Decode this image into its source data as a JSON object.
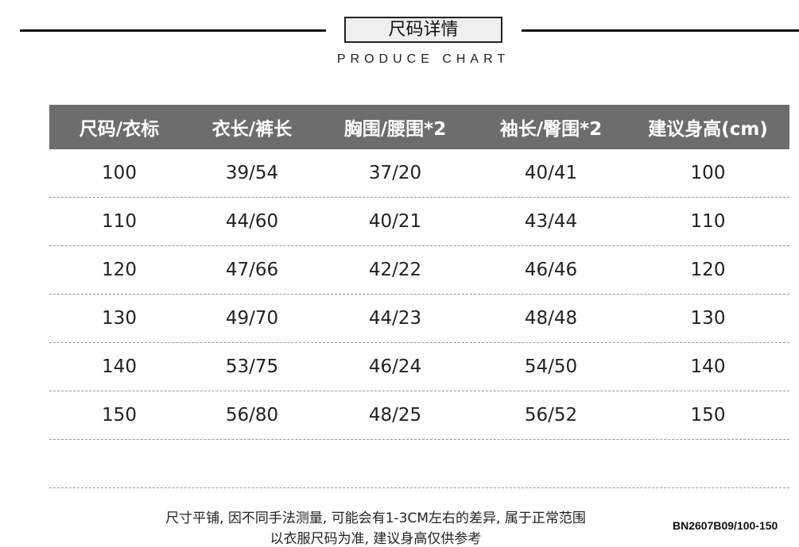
{
  "header": {
    "title": "尺码详情",
    "subtitle": "PRODUCE CHART"
  },
  "table": {
    "columns": [
      "尺码/衣标",
      "衣长/裤长",
      "胸围/腰围*2",
      "袖长/臀围*2",
      "建议身高(cm)"
    ],
    "rows": [
      [
        "100",
        "39/54",
        "37/20",
        "40/41",
        "100"
      ],
      [
        "110",
        "44/60",
        "40/21",
        "43/44",
        "110"
      ],
      [
        "120",
        "47/66",
        "42/22",
        "46/46",
        "120"
      ],
      [
        "130",
        "49/70",
        "44/23",
        "48/48",
        "130"
      ],
      [
        "140",
        "53/75",
        "46/24",
        "54/50",
        "140"
      ],
      [
        "150",
        "56/80",
        "48/25",
        "56/52",
        "150"
      ],
      [
        "",
        "",
        "",
        "",
        ""
      ]
    ]
  },
  "notes": {
    "line1": "尺寸平铺, 因不同手法测量, 可能会有1-3CM左右的差异, 属于正常范围",
    "line2": "以衣服尺码为准, 建议身高仅供参考",
    "product_code": "BN2607B09/100-150"
  },
  "colors": {
    "header_bg": "#6d6d6d"
  }
}
